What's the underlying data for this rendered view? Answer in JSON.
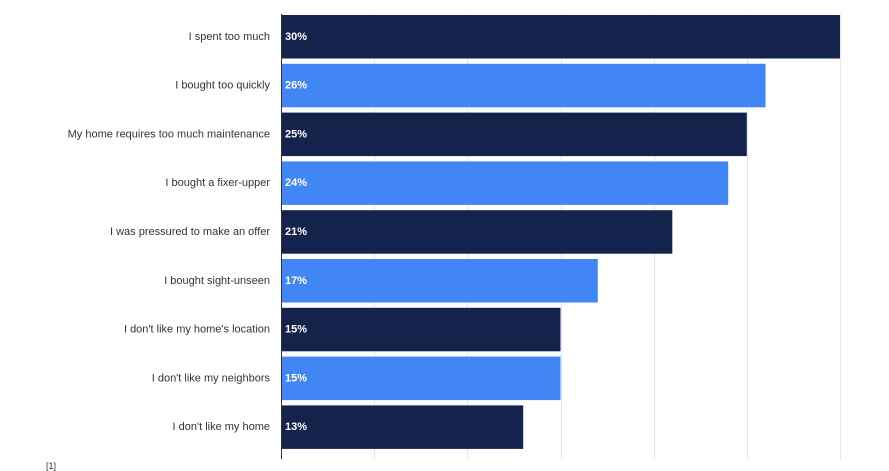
{
  "footnote": "[1]",
  "colors": {
    "dark": "#14234b",
    "blue": "#4285f4",
    "label": "#333333",
    "value_label": "#ffffff",
    "grid": "#e6e6e6",
    "axis": "#333333"
  },
  "chart_data": {
    "type": "bar",
    "orientation": "horizontal",
    "title": "",
    "xlabel": "",
    "ylabel": "",
    "xlim": [
      0,
      30
    ],
    "grid": true,
    "value_suffix": "%",
    "categories": [
      "I spent too much",
      "I bought too quickly",
      "My home requires too much maintenance",
      "I bought a fixer-upper",
      "I was pressured to make an offer",
      "I bought sight-unseen",
      "I don't like my home's location",
      "I don't like my neighbors",
      "I don't like my home"
    ],
    "values": [
      30,
      26,
      25,
      24,
      21,
      17,
      15,
      15,
      13
    ],
    "value_labels": [
      "30%",
      "26%",
      "25%",
      "24%",
      "21%",
      "17%",
      "15%",
      "15%",
      "13%"
    ],
    "bar_colors": [
      "#14234b",
      "#4285f4",
      "#14234b",
      "#4285f4",
      "#14234b",
      "#4285f4",
      "#14234b",
      "#4285f4",
      "#14234b"
    ]
  }
}
